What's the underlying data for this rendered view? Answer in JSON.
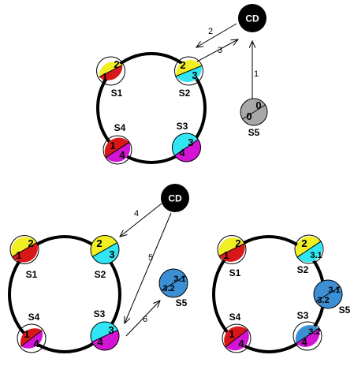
{
  "colors": {
    "red": "#d81818",
    "yellow": "#f2ee24",
    "cyan": "#31e6f2",
    "magenta": "#d414d4",
    "gray": "#a8a8a8",
    "blue": "#3b8fd2",
    "black": "#000000"
  },
  "coordinator_label": "CD",
  "steps": [
    "1",
    "2",
    "3",
    "4",
    "5",
    "6"
  ],
  "panel1": {
    "servers": [
      {
        "label": "S1",
        "top": "2",
        "bottom": "1"
      },
      {
        "label": "S2",
        "top": "2",
        "bottom": "3"
      },
      {
        "label": "S3",
        "top": "3",
        "bottom": "4"
      },
      {
        "label": "S4",
        "top": "1",
        "bottom": "4"
      },
      {
        "label": "S5",
        "top": "0",
        "bottom": "0"
      }
    ]
  },
  "panel2": {
    "servers": [
      {
        "label": "S1",
        "top": "2",
        "bottom": "1"
      },
      {
        "label": "S2",
        "top": "2",
        "bottom": "3"
      },
      {
        "label": "S3",
        "top": "3",
        "bottom": "4"
      },
      {
        "label": "S4",
        "top": "1",
        "bottom": "4"
      },
      {
        "label": "S5",
        "top": "3.1",
        "bottom": "3.2"
      }
    ]
  },
  "panel3": {
    "servers": [
      {
        "label": "S1",
        "top": "2",
        "bottom": "1"
      },
      {
        "label": "S2",
        "top": "2",
        "bottom": "3.1"
      },
      {
        "label": "S3",
        "top": "3.2",
        "bottom": "4"
      },
      {
        "label": "S4",
        "top": "1",
        "bottom": "4"
      },
      {
        "label": "S5",
        "top": "3.1",
        "bottom": "3.2"
      }
    ]
  }
}
